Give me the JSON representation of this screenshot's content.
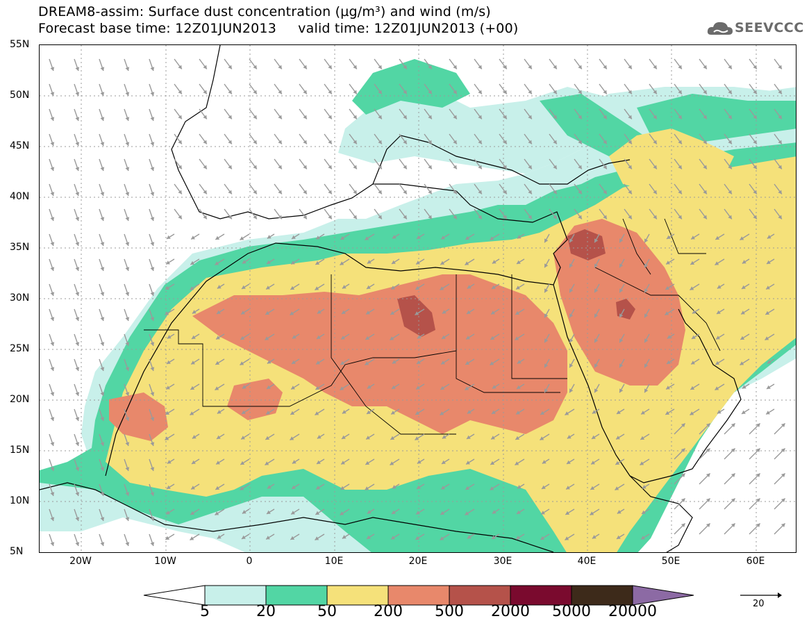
{
  "title_line1": "DREAM8-assim: Surface dust concentration (µg/m³) and wind (m/s)",
  "title_line2": "Forecast base time: 12Z01JUN2013     valid time: 12Z01JUN2013 (+00)",
  "logo_text": "SEEVCCC",
  "lat_labels": [
    "55N",
    "50N",
    "45N",
    "40N",
    "35N",
    "30N",
    "25N",
    "20N",
    "15N",
    "10N",
    "5N"
  ],
  "lon_labels": [
    "20W",
    "10W",
    "0",
    "10E",
    "20E",
    "30E",
    "40E",
    "50E",
    "60E"
  ],
  "legend": {
    "labels": [
      "5",
      "20",
      "50",
      "200",
      "500",
      "2000",
      "5000",
      "20000"
    ],
    "colors": [
      "#c8f0ea",
      "#52d6a4",
      "#f5e17a",
      "#e8886b",
      "#b5524a",
      "#7a0a2e",
      "#3d2a1a",
      "#8c6aa4",
      "#ffffff"
    ]
  },
  "wind_reference": {
    "value": "20",
    "unit": "m/s"
  },
  "colors": {
    "level1": "#c8f0ea",
    "level2": "#52d6a4",
    "level3": "#f5e17a",
    "level4": "#e8886b",
    "level5": "#b5524a",
    "arrow": "#9a9a9a",
    "border": "#000000"
  }
}
